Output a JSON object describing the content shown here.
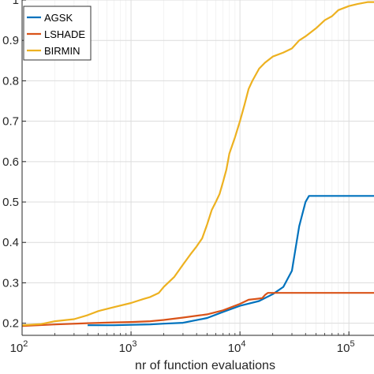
{
  "chart_data": {
    "type": "line",
    "title": "",
    "xlabel": "nr of function evaluations",
    "ylabel": "",
    "xscale": "log",
    "xlim": [
      100,
      170000
    ],
    "ylim": [
      0.17,
      1.0
    ],
    "grid": true,
    "legend_position": "top-left",
    "x_ticks": [
      100,
      1000,
      10000,
      100000
    ],
    "x_tick_labels": [
      {
        "base": "10",
        "exp": "2"
      },
      {
        "base": "10",
        "exp": "3"
      },
      {
        "base": "10",
        "exp": "4"
      },
      {
        "base": "10",
        "exp": "5"
      }
    ],
    "y_ticks": [
      0.2,
      0.3,
      0.4,
      0.5,
      0.6,
      0.7,
      0.8,
      0.9,
      1.0
    ],
    "y_tick_labels": [
      "0.2",
      "0.3",
      "0.4",
      "0.5",
      "0.6",
      "0.7",
      "0.8",
      "0.9",
      "1"
    ],
    "series": [
      {
        "name": "AGSK",
        "color": "#0072BD",
        "x": [
          400,
          700,
          1000,
          1500,
          2000,
          3000,
          5000,
          7000,
          10000,
          15000,
          20000,
          25000,
          30000,
          35000,
          40000,
          43000,
          50000,
          100000,
          170000
        ],
        "y": [
          0.195,
          0.195,
          0.196,
          0.197,
          0.199,
          0.201,
          0.213,
          0.228,
          0.243,
          0.255,
          0.272,
          0.29,
          0.33,
          0.44,
          0.5,
          0.515,
          0.515,
          0.515,
          0.515
        ]
      },
      {
        "name": "LSHADE",
        "color": "#D95319",
        "x": [
          100,
          200,
          400,
          700,
          1000,
          1500,
          2000,
          3000,
          5000,
          7000,
          10000,
          12000,
          14000,
          16000,
          17000,
          18000,
          20000,
          50000,
          170000
        ],
        "y": [
          0.193,
          0.197,
          0.2,
          0.202,
          0.203,
          0.205,
          0.208,
          0.214,
          0.222,
          0.232,
          0.248,
          0.258,
          0.26,
          0.262,
          0.27,
          0.275,
          0.275,
          0.275,
          0.275
        ]
      },
      {
        "name": "BIRMIN",
        "color": "#EDB120",
        "x": [
          100,
          150,
          200,
          300,
          400,
          500,
          700,
          1000,
          1300,
          1500,
          1800,
          2000,
          2500,
          3000,
          3500,
          4000,
          4500,
          5000,
          5500,
          6000,
          6500,
          7000,
          7500,
          8000,
          9000,
          10000,
          11000,
          12000,
          13000,
          15000,
          17000,
          20000,
          25000,
          30000,
          35000,
          40000,
          50000,
          60000,
          70000,
          80000,
          100000,
          120000,
          150000,
          170000
        ],
        "y": [
          0.195,
          0.198,
          0.205,
          0.21,
          0.22,
          0.23,
          0.24,
          0.25,
          0.26,
          0.265,
          0.275,
          0.29,
          0.315,
          0.345,
          0.37,
          0.39,
          0.41,
          0.445,
          0.48,
          0.5,
          0.52,
          0.55,
          0.58,
          0.62,
          0.66,
          0.7,
          0.74,
          0.78,
          0.8,
          0.83,
          0.845,
          0.86,
          0.87,
          0.88,
          0.9,
          0.91,
          0.93,
          0.95,
          0.96,
          0.975,
          0.985,
          0.99,
          0.995,
          0.995
        ]
      }
    ]
  }
}
